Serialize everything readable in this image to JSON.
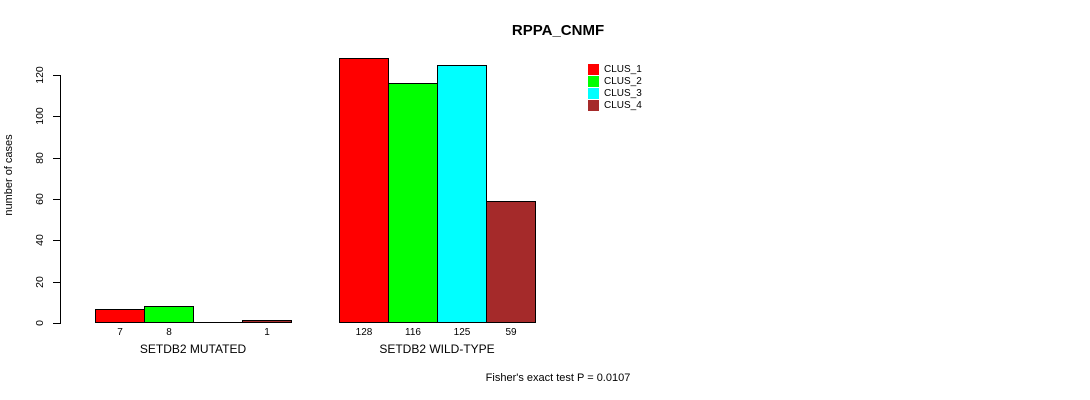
{
  "chart_data": {
    "type": "bar",
    "title": "RPPA_CNMF",
    "ylabel": "number of cases",
    "xlabel": "",
    "ylim": [
      0,
      120
    ],
    "yticks": [
      0,
      20,
      40,
      60,
      80,
      100,
      120
    ],
    "grid": false,
    "legend_position": "top-right",
    "groups": [
      "SETDB2 MUTATED",
      "SETDB2 WILD-TYPE"
    ],
    "series": [
      {
        "name": "CLUS_1",
        "color": "#FF0000",
        "values": [
          7,
          128
        ]
      },
      {
        "name": "CLUS_2",
        "color": "#00FF00",
        "values": [
          8,
          116
        ]
      },
      {
        "name": "CLUS_3",
        "color": "#00FFFF",
        "values": [
          0,
          125
        ]
      },
      {
        "name": "CLUS_4",
        "color": "#A52A2A",
        "values": [
          1,
          59
        ]
      }
    ],
    "bar_value_labels": [
      [
        "7",
        "8",
        "",
        "1"
      ],
      [
        "128",
        "116",
        "125",
        "59"
      ]
    ],
    "annotation": "Fisher's exact test P = 0.0107"
  }
}
